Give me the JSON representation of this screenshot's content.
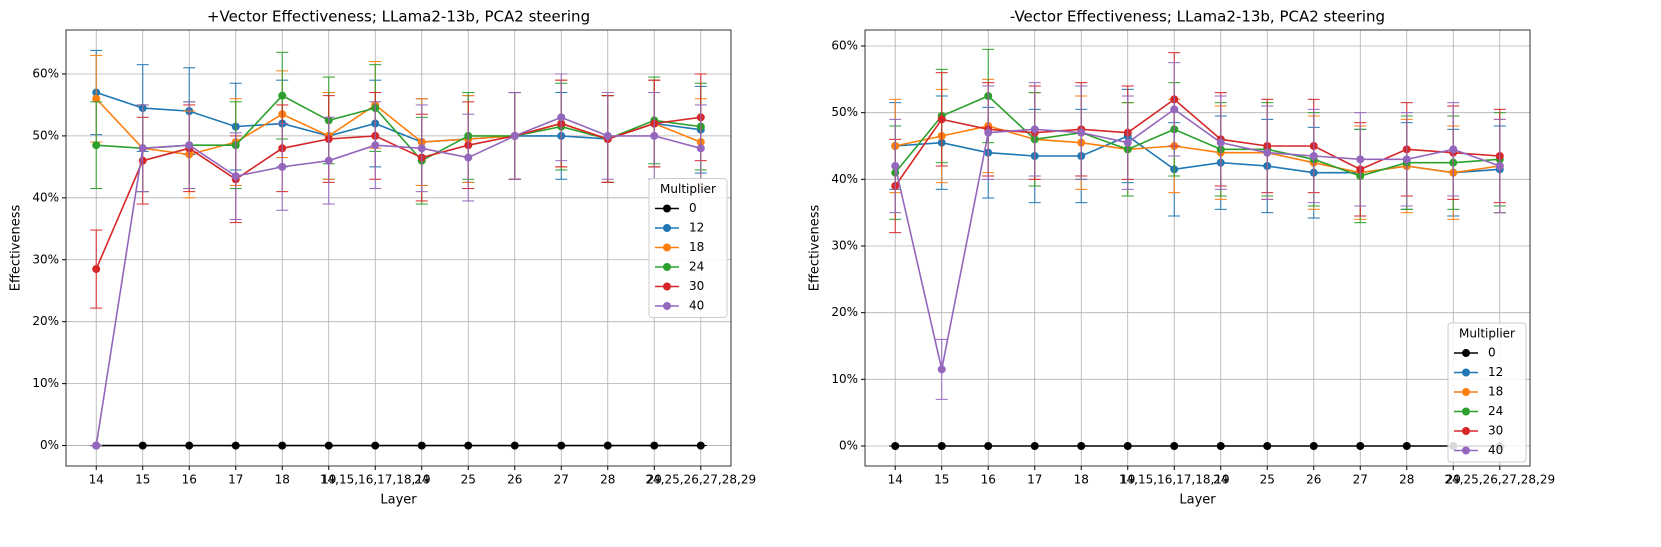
{
  "chart_data": [
    {
      "type": "line",
      "title": "+Vector Effectiveness; LLama2-13b, PCA2 steering",
      "x_label": "Layer",
      "y_label": "Effectiveness",
      "categories": [
        "14",
        "15",
        "16",
        "17",
        "18",
        "19",
        "14,15,16,17,18,19",
        "24",
        "25",
        "26",
        "27",
        "28",
        "29",
        "24,25,26,27,28,29"
      ],
      "ylim": [
        -3.3,
        67.1
      ],
      "yticks": [
        {
          "value": 0,
          "label": "0%"
        },
        {
          "value": 10,
          "label": "10%"
        },
        {
          "value": 20,
          "label": "20%"
        },
        {
          "value": 30,
          "label": "30%"
        },
        {
          "value": 40,
          "label": "40%"
        },
        {
          "value": 50,
          "label": "50%"
        },
        {
          "value": 60,
          "label": "60%"
        }
      ],
      "grid": true,
      "legend_title": "Multiplier",
      "legend": "center right",
      "series": [
        {
          "name": "0",
          "color": "#000000",
          "values": [
            0,
            0,
            0,
            0,
            0,
            0,
            0,
            0,
            0,
            0,
            0,
            0,
            0,
            0
          ],
          "errors": [
            0,
            0,
            0,
            0,
            0,
            0,
            0,
            0,
            0,
            0,
            0,
            0,
            0,
            0
          ]
        },
        {
          "name": "12",
          "color": "#1f77b4",
          "values": [
            57,
            54.5,
            54,
            51.5,
            52,
            50,
            52,
            49,
            49.5,
            50,
            50,
            49.5,
            52,
            51
          ],
          "errors": [
            6.8,
            7,
            7,
            7,
            7,
            7,
            7,
            7,
            7,
            7,
            7,
            7,
            7,
            7
          ]
        },
        {
          "name": "18",
          "color": "#ff7f0e",
          "values": [
            56,
            48,
            47,
            49,
            53.5,
            50,
            55,
            49,
            49.5,
            50,
            52,
            49.5,
            52,
            49
          ],
          "errors": [
            7,
            7,
            7,
            7,
            7,
            7,
            7,
            7,
            7,
            7,
            7,
            7,
            7,
            7
          ]
        },
        {
          "name": "24",
          "color": "#2ca02c",
          "values": [
            48.5,
            48,
            48.5,
            48.5,
            56.5,
            52.5,
            54.5,
            46,
            50,
            50,
            51.5,
            49.5,
            52.5,
            51.5
          ],
          "errors": [
            7,
            7,
            7,
            7,
            7,
            7,
            7,
            7,
            7,
            7,
            7,
            7,
            7,
            7
          ]
        },
        {
          "name": "30",
          "color": "#d62728",
          "values": [
            28.5,
            46,
            48,
            43,
            48,
            49.5,
            50,
            46.5,
            48.5,
            50,
            52,
            49.5,
            52,
            53
          ],
          "errors": [
            6.3,
            7,
            7,
            7,
            7,
            7,
            7,
            7,
            7,
            7,
            7,
            7,
            7,
            7
          ]
        },
        {
          "name": "40",
          "color": "#9467bd",
          "values": [
            0,
            48,
            48.5,
            43.5,
            45,
            46,
            48.5,
            48,
            46.5,
            50,
            53,
            50,
            50,
            48
          ],
          "errors": [
            0,
            7,
            7,
            7,
            7,
            7,
            7,
            7,
            7,
            7,
            7,
            7,
            7,
            7
          ]
        }
      ]
    },
    {
      "type": "line",
      "title": "-Vector Effectiveness; LLama2-13b, PCA2 steering",
      "x_label": "Layer",
      "y_label": "Effectiveness",
      "categories": [
        "14",
        "15",
        "16",
        "17",
        "18",
        "19",
        "14,15,16,17,18,19",
        "24",
        "25",
        "26",
        "27",
        "28",
        "29",
        "24,25,26,27,28,29"
      ],
      "ylim": [
        -3,
        62.4
      ],
      "yticks": [
        {
          "value": 0,
          "label": "0%"
        },
        {
          "value": 10,
          "label": "10%"
        },
        {
          "value": 20,
          "label": "20%"
        },
        {
          "value": 30,
          "label": "30%"
        },
        {
          "value": 40,
          "label": "40%"
        },
        {
          "value": 50,
          "label": "50%"
        },
        {
          "value": 60,
          "label": "60%"
        }
      ],
      "grid": true,
      "legend_title": "Multiplier",
      "legend": "lower right",
      "series": [
        {
          "name": "0",
          "color": "#000000",
          "values": [
            0,
            0,
            0,
            0,
            0,
            0,
            0,
            0,
            0,
            0,
            0,
            0,
            0,
            0
          ],
          "errors": [
            0,
            0,
            0,
            0,
            0,
            0,
            0,
            0,
            0,
            0,
            0,
            0,
            0,
            0
          ]
        },
        {
          "name": "12",
          "color": "#1f77b4",
          "values": [
            45,
            45.5,
            44,
            43.5,
            43.5,
            46.5,
            41.5,
            42.5,
            42,
            41,
            41,
            42,
            41,
            41.5
          ],
          "errors": [
            6.5,
            7,
            6.8,
            7,
            7,
            7,
            7,
            7,
            7,
            6.8,
            6.5,
            6.5,
            6.5,
            6.5
          ]
        },
        {
          "name": "18",
          "color": "#ff7f0e",
          "values": [
            45,
            46.5,
            48,
            46,
            45.5,
            44.5,
            45,
            44,
            44,
            42.5,
            41,
            42,
            41,
            42
          ],
          "errors": [
            7,
            7,
            7,
            7,
            7,
            7,
            7,
            7,
            7,
            7,
            7,
            7,
            7,
            7
          ]
        },
        {
          "name": "24",
          "color": "#2ca02c",
          "values": [
            41,
            49.5,
            52.5,
            46,
            47,
            44.5,
            47.5,
            44.5,
            44.5,
            43,
            40.5,
            42.5,
            42.5,
            43
          ],
          "errors": [
            7,
            7,
            7,
            7,
            7,
            7,
            7,
            7,
            7,
            7,
            7,
            7,
            7,
            7
          ]
        },
        {
          "name": "30",
          "color": "#d62728",
          "values": [
            39,
            49,
            47.5,
            47,
            47.5,
            47,
            52,
            46,
            45,
            45,
            41.5,
            44.5,
            44,
            43.5
          ],
          "errors": [
            7,
            7,
            7,
            7,
            7,
            7,
            7,
            7,
            7,
            7,
            7,
            7,
            7,
            7
          ]
        },
        {
          "name": "40",
          "color": "#9467bd",
          "values": [
            42,
            11.5,
            47,
            47.5,
            47,
            45.5,
            50.5,
            45.5,
            44,
            43.5,
            43,
            43,
            44.5,
            42
          ],
          "errors": [
            7,
            4.5,
            7,
            7,
            7,
            7,
            7,
            7,
            7,
            7,
            7,
            7,
            7,
            7
          ]
        }
      ]
    }
  ]
}
